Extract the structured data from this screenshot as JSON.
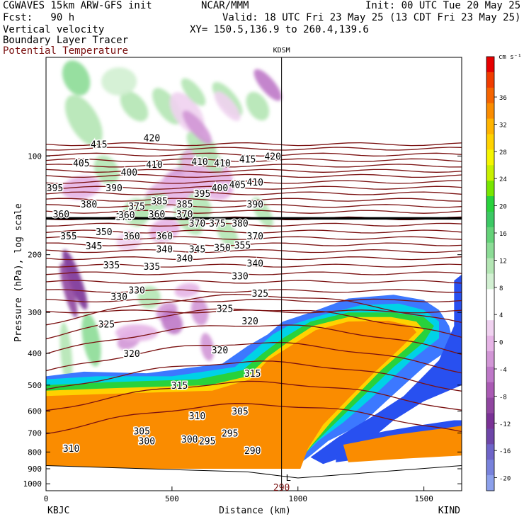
{
  "header": {
    "model": "CGWAVES 15km ARW-GFS init",
    "org": "NCAR/MMM",
    "init": "Init: 00 UTC Tue 20 May 25",
    "fcst": "Fcst:   90 h",
    "valid": "Valid: 18 UTC Fri 23 May 25 (13 CDT Fri 23 May 25)",
    "field1": "Vertical velocity",
    "xy": "XY= 150.5,136.9 to 260.4,139.6",
    "field2": "Boundary Layer Tracer",
    "field3": "Potential Temperature"
  },
  "chart_data": {
    "type": "heatmap",
    "title": "",
    "xlabel": "Distance (km)",
    "ylabel": "Pressure (hPa), log scale",
    "x_ticks": [
      0,
      500,
      1000,
      1500
    ],
    "x_range": [
      0,
      1650
    ],
    "y_ticks": [
      100,
      200,
      300,
      400,
      500,
      600,
      700,
      800,
      900,
      1000
    ],
    "y_range": [
      1050,
      50
    ],
    "y_scale": "log",
    "start_station": "KBJC",
    "end_station": "KIND",
    "marker_station": "KDSM",
    "marker_x_km": 935,
    "marker_bottom_label": "L",
    "marker_bottom_value": "290",
    "colorbar": {
      "units": "cm s⁻¹",
      "tick_labels": [
        "36",
        "32",
        "28",
        "24",
        "20",
        "16",
        "12",
        "8",
        "4",
        "0",
        "-4",
        "-8",
        "-12",
        "-16",
        "-20"
      ],
      "colors": [
        "#e60000",
        "#f03c00",
        "#f56400",
        "#fa8c00",
        "#ffb400",
        "#ffd200",
        "#f5f500",
        "#c8f000",
        "#78e600",
        "#28d23c",
        "#3cc864",
        "#64d278",
        "#8cdc96",
        "#b4e6b4",
        "#d2f0d2",
        "#ffffff",
        "#ffffff",
        "#f0d2f0",
        "#e6b4e6",
        "#d296d6",
        "#be78c8",
        "#aa5ab4",
        "#9046a0",
        "#7a3296",
        "#6e46a8",
        "#6e64c8",
        "#7882dc",
        "#8ca0eb"
      ]
    },
    "isentrope_labels": [
      {
        "x": 210,
        "p": 92,
        "text": "415"
      },
      {
        "x": 420,
        "p": 88,
        "text": "420"
      },
      {
        "x": 140,
        "p": 105,
        "text": "405"
      },
      {
        "x": 430,
        "p": 106,
        "text": "410"
      },
      {
        "x": 610,
        "p": 104,
        "text": "410"
      },
      {
        "x": 700,
        "p": 105,
        "text": "410"
      },
      {
        "x": 800,
        "p": 102,
        "text": "415"
      },
      {
        "x": 900,
        "p": 100,
        "text": "420"
      },
      {
        "x": 35,
        "p": 125,
        "text": "395"
      },
      {
        "x": 170,
        "p": 140,
        "text": "380"
      },
      {
        "x": 270,
        "p": 125,
        "text": "390"
      },
      {
        "x": 330,
        "p": 112,
        "text": "400"
      },
      {
        "x": 360,
        "p": 142,
        "text": "375"
      },
      {
        "x": 310,
        "p": 153,
        "text": "370"
      },
      {
        "x": 450,
        "p": 137,
        "text": "385"
      },
      {
        "x": 550,
        "p": 140,
        "text": "385"
      },
      {
        "x": 620,
        "p": 130,
        "text": "395"
      },
      {
        "x": 690,
        "p": 125,
        "text": "400"
      },
      {
        "x": 760,
        "p": 122,
        "text": "405"
      },
      {
        "x": 830,
        "p": 120,
        "text": "410"
      },
      {
        "x": 830,
        "p": 140,
        "text": "390"
      },
      {
        "x": 90,
        "p": 175,
        "text": "355"
      },
      {
        "x": 230,
        "p": 170,
        "text": "350"
      },
      {
        "x": 190,
        "p": 188,
        "text": "345"
      },
      {
        "x": 340,
        "p": 175,
        "text": "360"
      },
      {
        "x": 470,
        "p": 175,
        "text": "360"
      },
      {
        "x": 470,
        "p": 192,
        "text": "340"
      },
      {
        "x": 600,
        "p": 160,
        "text": "370"
      },
      {
        "x": 680,
        "p": 160,
        "text": "375"
      },
      {
        "x": 770,
        "p": 160,
        "text": "380"
      },
      {
        "x": 600,
        "p": 192,
        "text": "345"
      },
      {
        "x": 700,
        "p": 190,
        "text": "350"
      },
      {
        "x": 780,
        "p": 187,
        "text": "355"
      },
      {
        "x": 830,
        "p": 175,
        "text": "370"
      },
      {
        "x": 260,
        "p": 215,
        "text": "335"
      },
      {
        "x": 420,
        "p": 217,
        "text": "335"
      },
      {
        "x": 550,
        "p": 205,
        "text": "340"
      },
      {
        "x": 830,
        "p": 212,
        "text": "340"
      },
      {
        "x": 290,
        "p": 268,
        "text": "330"
      },
      {
        "x": 360,
        "p": 256,
        "text": "330"
      },
      {
        "x": 770,
        "p": 232,
        "text": "330"
      },
      {
        "x": 710,
        "p": 292,
        "text": "325"
      },
      {
        "x": 240,
        "p": 325,
        "text": "325"
      },
      {
        "x": 340,
        "p": 400,
        "text": "320"
      },
      {
        "x": 690,
        "p": 390,
        "text": "320"
      },
      {
        "x": 530,
        "p": 500,
        "text": "315"
      },
      {
        "x": 820,
        "p": 460,
        "text": "315"
      },
      {
        "x": 810,
        "p": 318,
        "text": "320"
      },
      {
        "x": 850,
        "p": 262,
        "text": "325"
      },
      {
        "x": 600,
        "p": 620,
        "text": "310"
      },
      {
        "x": 770,
        "p": 600,
        "text": "305"
      },
      {
        "x": 380,
        "p": 690,
        "text": "305"
      },
      {
        "x": 400,
        "p": 740,
        "text": "300"
      },
      {
        "x": 570,
        "p": 730,
        "text": "300"
      },
      {
        "x": 640,
        "p": 740,
        "text": "295"
      },
      {
        "x": 730,
        "p": 700,
        "text": "295"
      },
      {
        "x": 100,
        "p": 780,
        "text": "310"
      },
      {
        "x": 820,
        "p": 790,
        "text": "290"
      },
      {
        "x": 60,
        "p": 150,
        "text": "360"
      },
      {
        "x": 440,
        "p": 150,
        "text": "360"
      },
      {
        "x": 550,
        "p": 150,
        "text": "370"
      },
      {
        "x": 320,
        "p": 151,
        "text": "360"
      }
    ]
  }
}
